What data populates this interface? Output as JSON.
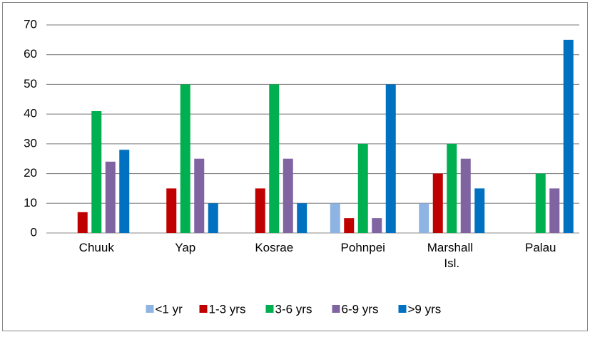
{
  "chart_data": {
    "type": "bar",
    "categories": [
      "Chuuk",
      "Yap",
      "Kosrae",
      "Pohnpei",
      "Marshall Isl.",
      "Palau"
    ],
    "series": [
      {
        "name": "<1 yr",
        "color": "#8db4e2",
        "values": [
          0,
          0,
          0,
          10,
          10,
          0
        ]
      },
      {
        "name": "1-3 yrs",
        "color": "#c00000",
        "values": [
          7,
          15,
          15,
          5,
          20,
          0
        ]
      },
      {
        "name": "3-6 yrs",
        "color": "#00b050",
        "values": [
          41,
          50,
          50,
          30,
          30,
          20
        ]
      },
      {
        "name": "6-9 yrs",
        "color": "#8064a2",
        "values": [
          24,
          25,
          25,
          5,
          25,
          15
        ]
      },
      {
        "name": ">9 yrs",
        "color": "#0070c0",
        "values": [
          28,
          10,
          10,
          50,
          15,
          65
        ]
      }
    ],
    "ylim": [
      0,
      70
    ],
    "yticks": [
      0,
      10,
      20,
      30,
      40,
      50,
      60,
      70
    ],
    "grid": true,
    "legend": "bottom"
  }
}
